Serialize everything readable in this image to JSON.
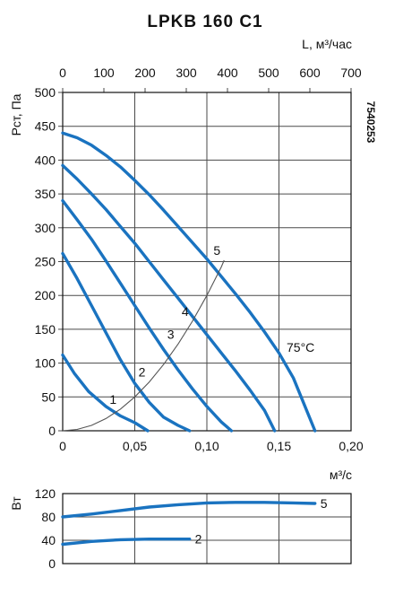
{
  "title": "LPKB 160 C1",
  "code": "7540253",
  "colors": {
    "curve": "#1a73c0",
    "system_curve": "#555555",
    "grid": "#4a4a4a"
  },
  "chart_data": [
    {
      "type": "line",
      "title": "LPKB 160 C1",
      "ylabel": "Pст, Па",
      "xlabel_bottom": "м³/с",
      "xlabel_top": "L, м³/час",
      "xlim": [
        0,
        0.2
      ],
      "ylim": [
        0,
        500
      ],
      "top_axis_lim": [
        0,
        700
      ],
      "xticks": [
        "0",
        "0,05",
        "0,10",
        "0,15",
        "0,20"
      ],
      "xtick_values": [
        0,
        0.05,
        0.1,
        0.15,
        0.2
      ],
      "top_ticks": [
        "0",
        "100",
        "200",
        "300",
        "400",
        "500",
        "600",
        "700"
      ],
      "top_tick_values": [
        0,
        100,
        200,
        300,
        400,
        500,
        600,
        700
      ],
      "yticks": [
        "0",
        "50",
        "100",
        "150",
        "200",
        "250",
        "300",
        "350",
        "400",
        "450",
        "500"
      ],
      "ytick_values": [
        0,
        50,
        100,
        150,
        200,
        250,
        300,
        350,
        400,
        450,
        500
      ],
      "grid": true,
      "annotation": "75°C",
      "series": [
        {
          "name": "1",
          "x": [
            0,
            0.008,
            0.018,
            0.03,
            0.04,
            0.05,
            0.059
          ],
          "y": [
            112,
            85,
            58,
            36,
            22,
            12,
            0
          ]
        },
        {
          "name": "2",
          "x": [
            0,
            0.01,
            0.02,
            0.03,
            0.04,
            0.05,
            0.06,
            0.07,
            0.08,
            0.088
          ],
          "y": [
            262,
            225,
            185,
            145,
            105,
            70,
            42,
            20,
            8,
            0
          ]
        },
        {
          "name": "3",
          "x": [
            0,
            0.01,
            0.02,
            0.03,
            0.04,
            0.05,
            0.06,
            0.07,
            0.08,
            0.09,
            0.1,
            0.11,
            0.117
          ],
          "y": [
            340,
            312,
            283,
            251,
            218,
            185,
            152,
            120,
            90,
            62,
            36,
            13,
            0
          ]
        },
        {
          "name": "4",
          "x": [
            0,
            0.01,
            0.02,
            0.03,
            0.04,
            0.05,
            0.06,
            0.07,
            0.08,
            0.09,
            0.1,
            0.11,
            0.12,
            0.13,
            0.14,
            0.147
          ],
          "y": [
            392,
            372,
            350,
            327,
            302,
            277,
            250,
            223,
            196,
            169,
            142,
            115,
            88,
            60,
            30,
            0
          ]
        },
        {
          "name": "5",
          "x": [
            0,
            0.01,
            0.02,
            0.03,
            0.04,
            0.05,
            0.06,
            0.07,
            0.08,
            0.09,
            0.1,
            0.11,
            0.12,
            0.13,
            0.14,
            0.15,
            0.16,
            0.175
          ],
          "y": [
            440,
            433,
            422,
            407,
            390,
            370,
            349,
            326,
            302,
            278,
            254,
            228,
            202,
            175,
            146,
            115,
            78,
            0
          ]
        },
        {
          "name": "system",
          "x": [
            0,
            0.01,
            0.02,
            0.03,
            0.04,
            0.05,
            0.06,
            0.07,
            0.08,
            0.09,
            0.1,
            0.11,
            0.112
          ],
          "y": [
            0,
            2,
            8,
            18,
            32,
            50,
            72,
            98,
            128,
            162,
            200,
            242,
            252
          ]
        }
      ]
    },
    {
      "type": "line",
      "ylabel": "Вт",
      "xlim": [
        0,
        0.2
      ],
      "ylim": [
        0,
        120
      ],
      "yticks": [
        "0",
        "40",
        "80",
        "120"
      ],
      "ytick_values": [
        0,
        40,
        80,
        120
      ],
      "grid": true,
      "series": [
        {
          "name": "5",
          "x": [
            0,
            0.02,
            0.04,
            0.06,
            0.08,
            0.1,
            0.12,
            0.14,
            0.16,
            0.175
          ],
          "y": [
            80,
            85,
            91,
            97,
            101,
            104,
            105,
            105,
            104,
            103
          ]
        },
        {
          "name": "2",
          "x": [
            0,
            0.02,
            0.04,
            0.06,
            0.08,
            0.088
          ],
          "y": [
            33,
            38,
            41,
            42,
            42,
            42
          ]
        }
      ]
    }
  ]
}
